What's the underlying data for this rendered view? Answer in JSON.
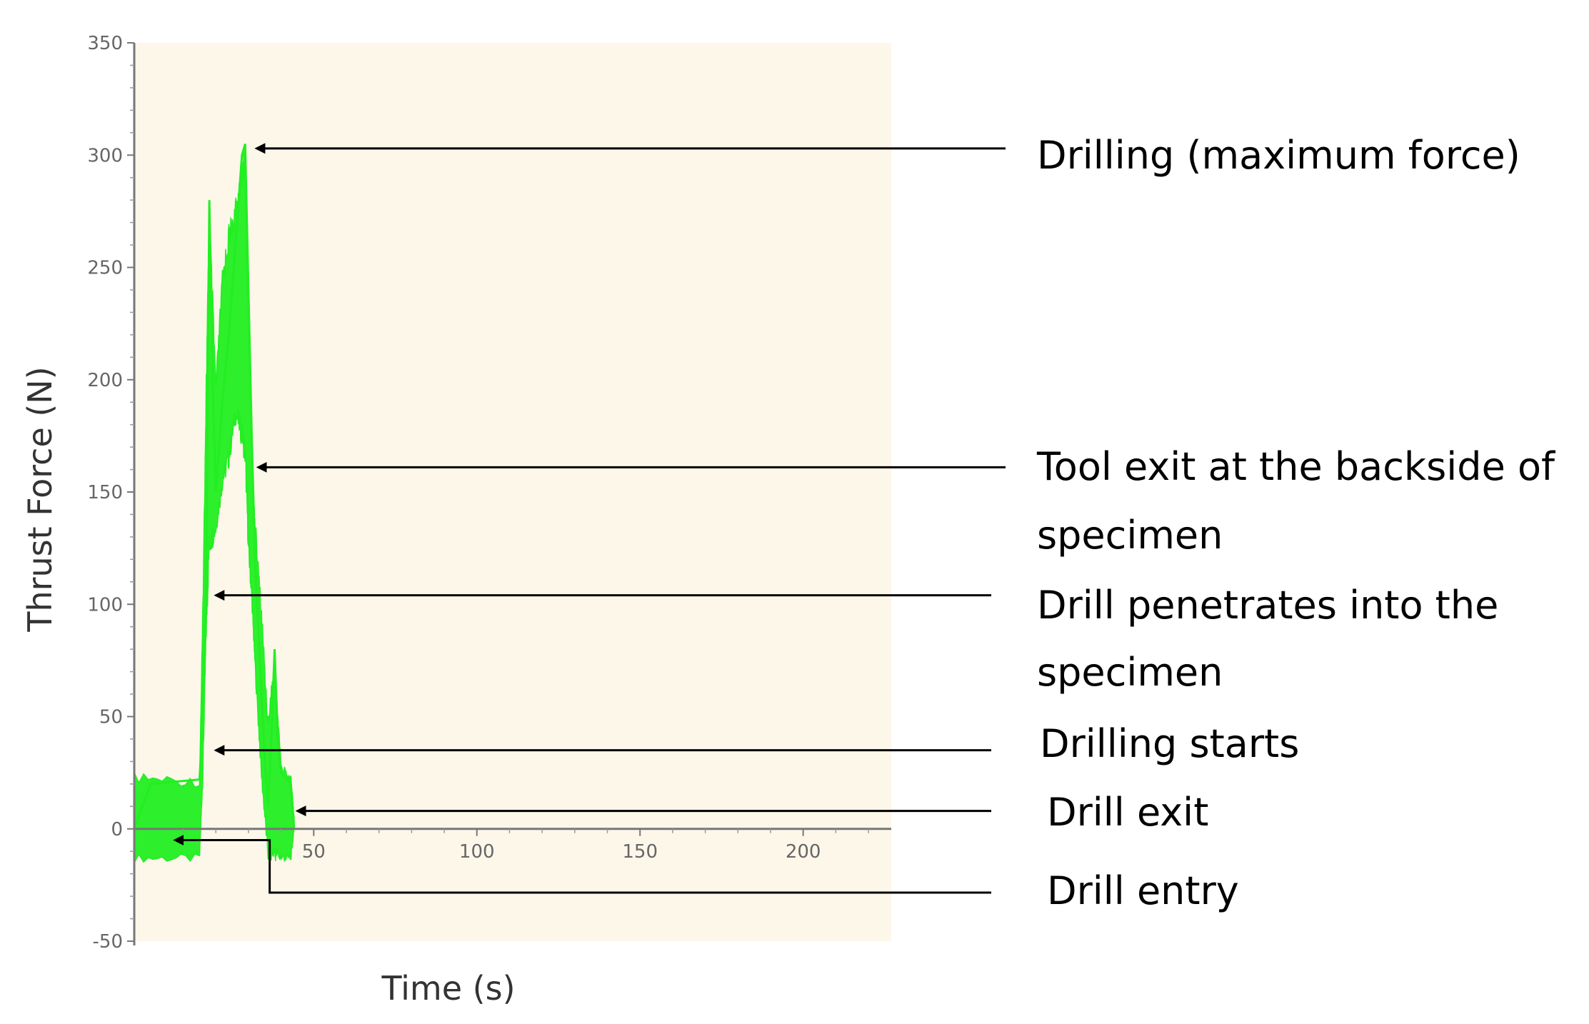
{
  "chart_data": {
    "type": "line",
    "title": "",
    "xlabel": "Time (s)",
    "ylabel": "Thrust Force (N)",
    "xlim": [
      -5,
      227
    ],
    "ylim": [
      -50,
      350
    ],
    "x_ticks": [
      "50",
      "100",
      "150",
      "200"
    ],
    "y_ticks": [
      "350",
      "300",
      "250",
      "200",
      "150",
      "100",
      "50",
      "0",
      "-50"
    ],
    "grid": false,
    "plot_background": "#fdf7ea",
    "series": [
      {
        "color": "#22ee22",
        "points": [
          [
            -5,
            0
          ],
          [
            0,
            20
          ],
          [
            15,
            22
          ],
          [
            15.5,
            35
          ],
          [
            16,
            60
          ],
          [
            17,
            100
          ],
          [
            18,
            280
          ],
          [
            19,
            200
          ],
          [
            20,
            150
          ],
          [
            22,
            190
          ],
          [
            24,
            220
          ],
          [
            26,
            260
          ],
          [
            28,
            300
          ],
          [
            29,
            305
          ],
          [
            30,
            240
          ],
          [
            31,
            175
          ],
          [
            32,
            120
          ],
          [
            34,
            60
          ],
          [
            35,
            30
          ],
          [
            36,
            10
          ],
          [
            37,
            40
          ],
          [
            38,
            80
          ],
          [
            39,
            40
          ],
          [
            40,
            25
          ],
          [
            42,
            22
          ],
          [
            43,
            20
          ],
          [
            44,
            0
          ]
        ],
        "noise_band": [
          [
            -5,
            -15,
            25
          ],
          [
            15,
            -15,
            23
          ],
          [
            16,
            20,
            100
          ],
          [
            17,
            80,
            200
          ],
          [
            18,
            120,
            280
          ],
          [
            20,
            130,
            200
          ],
          [
            22,
            150,
            250
          ],
          [
            24,
            160,
            270
          ],
          [
            26,
            180,
            280
          ],
          [
            28,
            170,
            300
          ],
          [
            29,
            160,
            305
          ],
          [
            30,
            120,
            230
          ],
          [
            31,
            100,
            170
          ],
          [
            32,
            70,
            140
          ],
          [
            34,
            20,
            100
          ],
          [
            36,
            -15,
            50
          ],
          [
            38,
            -15,
            80
          ],
          [
            40,
            -15,
            30
          ],
          [
            43,
            -15,
            25
          ],
          [
            44,
            0,
            5
          ]
        ]
      }
    ],
    "annotations": [
      {
        "id": "max-force",
        "lines": [
          "Drilling (maximum force)"
        ],
        "target_x": 30.0,
        "target_y": 303
      },
      {
        "id": "tool-exit",
        "lines": [
          "Tool exit at the backside of",
          "specimen"
        ],
        "target_x": 30.5,
        "target_y": 161
      },
      {
        "id": "penetrates",
        "lines": [
          "Drill penetrates into the",
          "specimen"
        ],
        "target_x": 17.5,
        "target_y": 104
      },
      {
        "id": "starts",
        "lines": [
          "Drilling starts"
        ],
        "target_x": 17.5,
        "target_y": 35
      },
      {
        "id": "exit",
        "lines": [
          "Drill exit"
        ],
        "target_x": 42.5,
        "target_y": 8
      },
      {
        "id": "entry",
        "lines": [
          "Drill entry"
        ],
        "target_x": 5,
        "target_y": -5
      }
    ]
  }
}
